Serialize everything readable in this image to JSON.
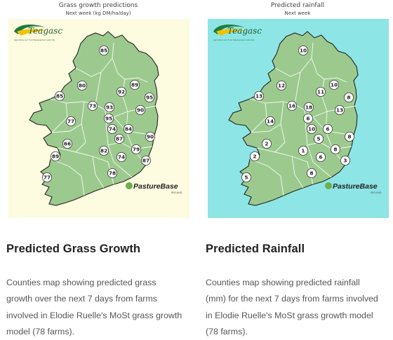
{
  "panels": [
    {
      "id": "grass",
      "map_title": "Grass growth predictions",
      "map_subtitle": "Next week (kg DM/ha/day)",
      "background": "#fdfbe0",
      "land_color": "#9cca8e",
      "logo_text": "Teagasc",
      "logo_tagline": "Agriculture and Food Development Authority",
      "pasturebase_text": "PastureBase",
      "pasturebase_sub": "IRELAND",
      "heading": "Predicted Grass Growth",
      "description": "Counties map showing predicted grass growth over the next 7 days from farms involved in Elodie Ruelle's MoSt grass growth model (78 farms).",
      "values": [
        "85",
        "80",
        "89",
        "92",
        "95",
        "85",
        "73",
        "93",
        "90",
        "95",
        "77",
        "74",
        "84",
        "87",
        "90",
        "66",
        "82",
        "79",
        "74",
        "87",
        "89",
        "78",
        "77"
      ]
    },
    {
      "id": "rain",
      "map_title": "Predicted rainfall",
      "map_subtitle": "Next week",
      "background": "#8de5e5",
      "land_color": "#9cca8e",
      "logo_text": "Teagasc",
      "logo_tagline": "Agriculture and Food Development Authority",
      "pasturebase_text": "PastureBase",
      "pasturebase_sub": "IRELAND",
      "heading": "Predicted Rainfall",
      "description": "Counties map showing predicted rainfall (mm) for the next 7 days from farms involved in Elodie Ruelle's MoSt grass growth model (78 farms).",
      "values": [
        "10",
        "12",
        "10",
        "11",
        "8",
        "13",
        "16",
        "18",
        "13",
        "6",
        "14",
        "10",
        "6",
        "5",
        "8",
        "2",
        "1",
        "8",
        "6",
        "3",
        "2",
        "8",
        "5"
      ]
    }
  ]
}
